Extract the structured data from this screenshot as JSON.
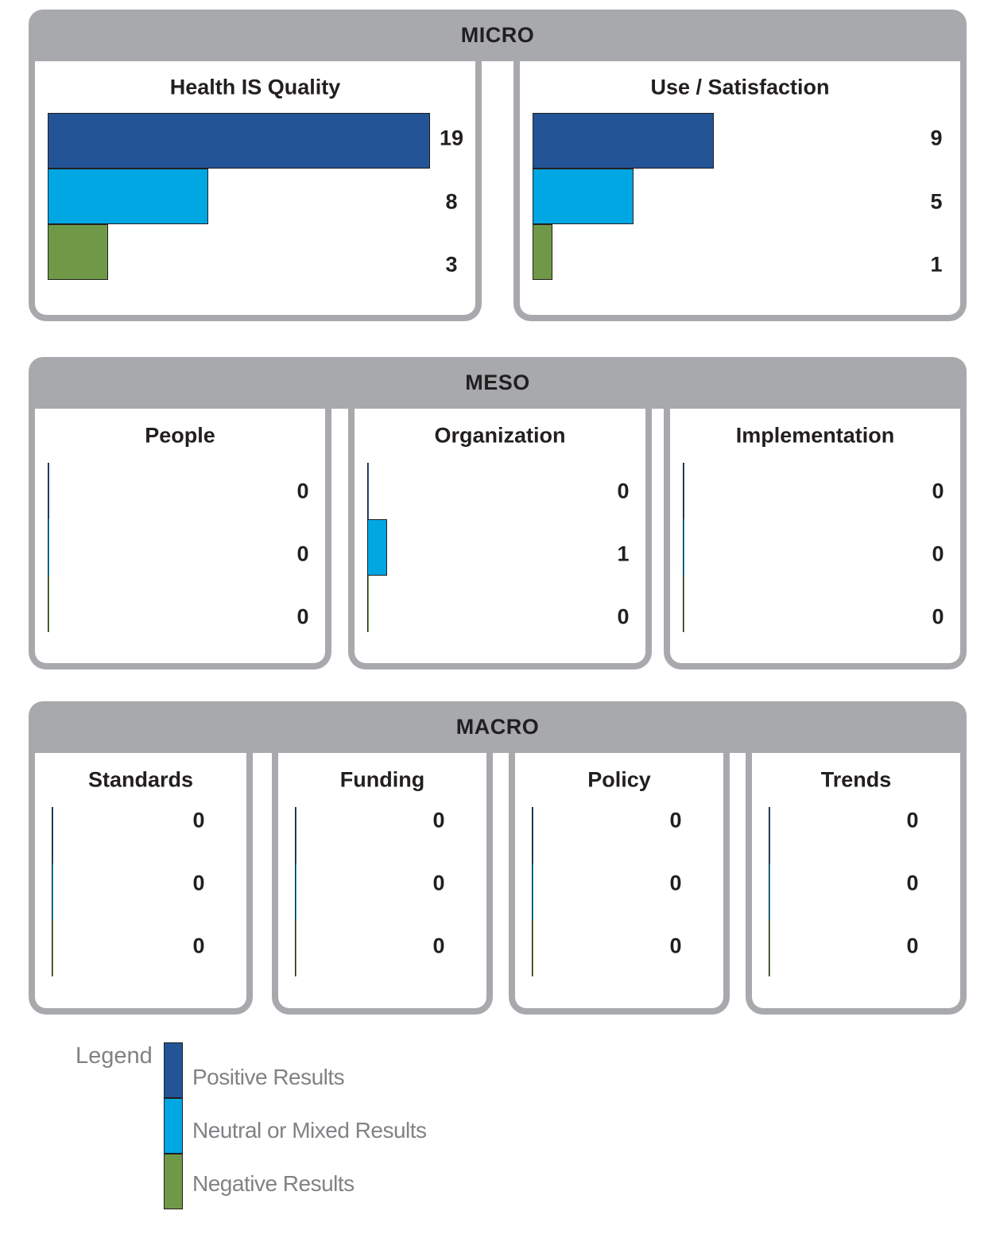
{
  "colors": {
    "positive": "#235495",
    "neutral": "#00a7e2",
    "negative": "#6f9946",
    "frame": "#a7a9ac"
  },
  "chart_data": {
    "type": "bar",
    "orientation": "horizontal",
    "series_names": [
      "Positive Results",
      "Neutral or Mixed Results",
      "Negative Results"
    ],
    "groups": [
      {
        "title": "MICRO",
        "panels": [
          {
            "title": "Health IS Quality",
            "values": [
              19,
              8,
              3
            ]
          },
          {
            "title": "Use / Satisfaction",
            "values": [
              9,
              5,
              1
            ]
          }
        ]
      },
      {
        "title": "MESO",
        "panels": [
          {
            "title": "People",
            "values": [
              0,
              0,
              0
            ]
          },
          {
            "title": "Organization",
            "values": [
              0,
              1,
              0
            ]
          },
          {
            "title": "Implementation",
            "values": [
              0,
              0,
              0
            ]
          }
        ]
      },
      {
        "title": "MACRO",
        "panels": [
          {
            "title": "Standards",
            "values": [
              0,
              0,
              0
            ]
          },
          {
            "title": "Funding",
            "values": [
              0,
              0,
              0
            ]
          },
          {
            "title": "Policy",
            "values": [
              0,
              0,
              0
            ]
          },
          {
            "title": "Trends",
            "values": [
              0,
              0,
              0
            ]
          }
        ]
      }
    ],
    "legend": {
      "title": "Legend",
      "placement": "bottom-left",
      "entries": [
        "Positive Results",
        "Neutral or Mixed Results",
        "Negative Results"
      ]
    }
  }
}
